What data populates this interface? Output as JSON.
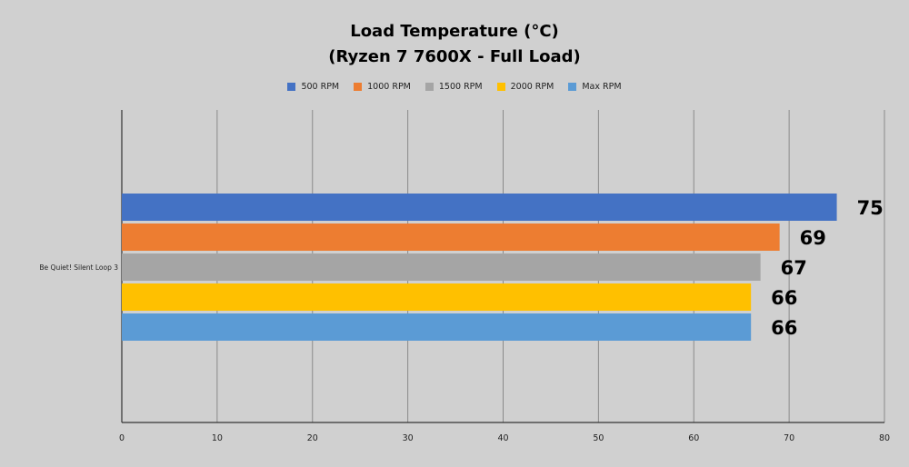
{
  "chart_data": {
    "type": "bar",
    "orientation": "horizontal",
    "title": "Load Temperature (°C)",
    "subtitle": "(Ryzen 7 7600X - Full Load)",
    "categories": [
      "Be Quiet! Silent Loop 3"
    ],
    "series": [
      {
        "name": "500 RPM",
        "values": [
          75
        ],
        "color": "#4472c4"
      },
      {
        "name": "1000 RPM",
        "values": [
          69
        ],
        "color": "#ed7d31"
      },
      {
        "name": "1500 RPM",
        "values": [
          67
        ],
        "color": "#a5a5a5"
      },
      {
        "name": "2000 RPM",
        "values": [
          66
        ],
        "color": "#ffc000"
      },
      {
        "name": "Max RPM",
        "values": [
          66
        ],
        "color": "#5b9bd5"
      }
    ],
    "xlim": [
      0,
      80
    ],
    "xticks": [
      0,
      10,
      20,
      30,
      40,
      50,
      60,
      70,
      80
    ],
    "grid": true,
    "legend_position": "top",
    "data_labels": true
  }
}
